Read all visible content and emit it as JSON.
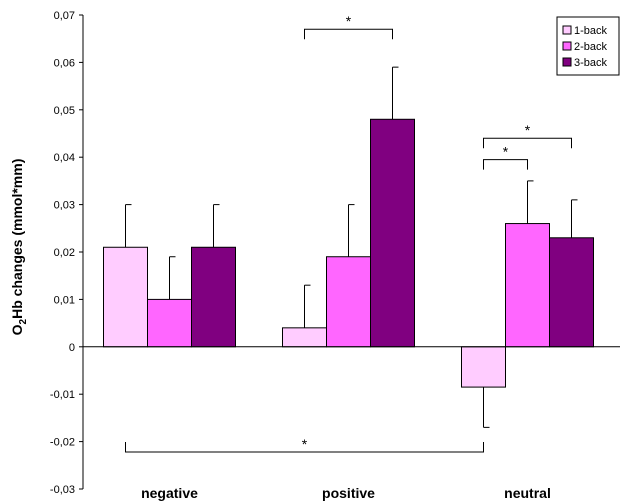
{
  "chart_data": {
    "type": "bar",
    "title": "",
    "ylabel": {
      "pre": "O",
      "sub": "2",
      "post": "Hb changes (mmol*mm)"
    },
    "xlabel": "",
    "categories": [
      "negative",
      "positive",
      "neutral"
    ],
    "ylim": [
      -0.03,
      0.07
    ],
    "yticks": [
      {
        "v": 0.07,
        "label": "0,07"
      },
      {
        "v": 0.06,
        "label": "0,06"
      },
      {
        "v": 0.05,
        "label": "0,05"
      },
      {
        "v": 0.04,
        "label": "0,04"
      },
      {
        "v": 0.03,
        "label": "0,03"
      },
      {
        "v": 0.02,
        "label": "0,02"
      },
      {
        "v": 0.01,
        "label": "0,01"
      },
      {
        "v": 0,
        "label": "0"
      },
      {
        "v": -0.01,
        "label": "-0,01"
      },
      {
        "v": -0.02,
        "label": "-0,02"
      },
      {
        "v": -0.03,
        "label": "-0,03"
      }
    ],
    "series": [
      {
        "name": "1-back",
        "color": "#FFCCFF",
        "values": [
          0.021,
          0.004,
          -0.0085
        ],
        "errors": [
          0.009,
          0.009,
          0.0085
        ]
      },
      {
        "name": "2-back",
        "color": "#FF66FF",
        "values": [
          0.01,
          0.019,
          0.026
        ],
        "errors": [
          0.009,
          0.011,
          0.009
        ]
      },
      {
        "name": "3-back",
        "color": "#800080",
        "values": [
          0.021,
          0.048,
          0.023
        ],
        "errors": [
          0.009,
          0.011,
          0.008
        ]
      }
    ],
    "legend": {
      "position": "top-right"
    },
    "grid": false,
    "significance": [
      {
        "label": "*",
        "from": [
          1,
          0
        ],
        "to": [
          1,
          2
        ],
        "y": 0.067,
        "ticks": "down"
      },
      {
        "label": "*",
        "from": [
          2,
          0
        ],
        "to": [
          2,
          2
        ],
        "y": 0.044,
        "ticks": "down"
      },
      {
        "label": "*",
        "from": [
          2,
          0
        ],
        "to": [
          2,
          1
        ],
        "y": 0.0395,
        "ticks": "down"
      },
      {
        "label": "*",
        "from": [
          0,
          0
        ],
        "to": [
          2,
          0
        ],
        "y": -0.0222,
        "ticks": "up"
      }
    ]
  }
}
